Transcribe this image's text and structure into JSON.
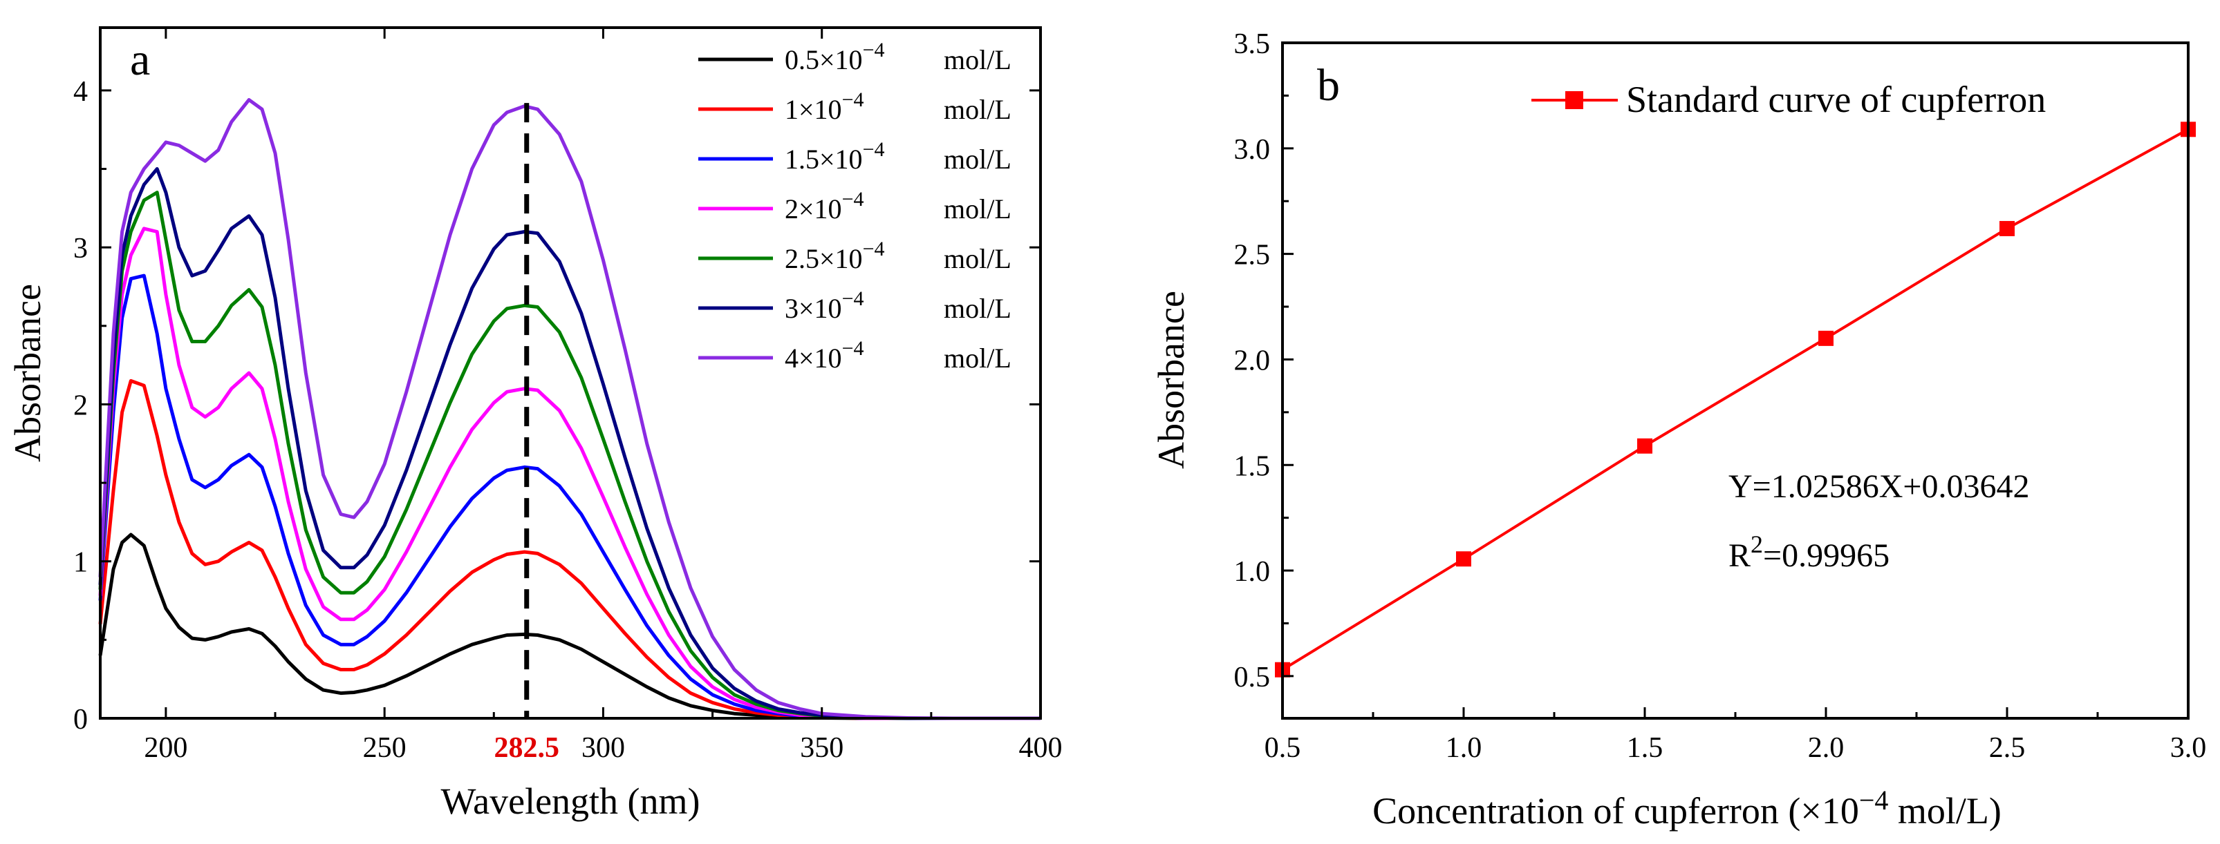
{
  "chart_data": [
    {
      "panel": "a",
      "type": "line",
      "xlabel": "Wavelength (nm)",
      "ylabel": "Absorbance",
      "xlim": [
        185,
        400
      ],
      "ylim": [
        0,
        4.4
      ],
      "xticks": [
        200,
        250,
        300,
        350,
        400
      ],
      "yticks": [
        0,
        1,
        2,
        3,
        4
      ],
      "highlight_x": 282.5,
      "highlight_label": "282.5",
      "highlight_color": "#e00000",
      "legend_position": "top-right",
      "x": [
        185,
        188,
        190,
        192,
        195,
        198,
        200,
        203,
        206,
        209,
        212,
        215,
        219,
        222,
        225,
        228,
        232,
        236,
        240,
        243,
        246,
        250,
        255,
        260,
        265,
        270,
        275,
        278,
        282,
        285,
        290,
        295,
        300,
        305,
        310,
        315,
        320,
        325,
        330,
        335,
        340,
        345,
        350,
        360,
        370,
        380,
        390,
        400
      ],
      "series": [
        {
          "name_main": "0.5×10",
          "name_exp": "−4",
          "name_unit": "mol/L",
          "color": "#000000",
          "values": [
            0.4,
            0.95,
            1.12,
            1.17,
            1.1,
            0.85,
            0.7,
            0.58,
            0.51,
            0.5,
            0.52,
            0.55,
            0.57,
            0.54,
            0.46,
            0.36,
            0.25,
            0.18,
            0.16,
            0.165,
            0.18,
            0.21,
            0.27,
            0.34,
            0.41,
            0.47,
            0.51,
            0.53,
            0.535,
            0.53,
            0.5,
            0.44,
            0.36,
            0.28,
            0.2,
            0.13,
            0.08,
            0.05,
            0.03,
            0.02,
            0.01,
            0.005,
            0.002,
            0,
            0,
            0,
            0,
            0
          ]
        },
        {
          "name_main": "1×10",
          "name_exp": "−4",
          "name_unit": "mol/L",
          "color": "#ff0000",
          "values": [
            0.6,
            1.45,
            1.95,
            2.15,
            2.12,
            1.8,
            1.55,
            1.25,
            1.05,
            0.98,
            1.0,
            1.06,
            1.12,
            1.07,
            0.9,
            0.7,
            0.47,
            0.35,
            0.31,
            0.31,
            0.34,
            0.41,
            0.53,
            0.67,
            0.81,
            0.93,
            1.01,
            1.045,
            1.06,
            1.05,
            0.98,
            0.86,
            0.7,
            0.54,
            0.39,
            0.26,
            0.16,
            0.1,
            0.06,
            0.035,
            0.02,
            0.01,
            0.005,
            0,
            0,
            0,
            0,
            0
          ]
        },
        {
          "name_main": "1.5×10",
          "name_exp": "−4",
          "name_unit": "mol/L",
          "color": "#0000ff",
          "values": [
            0.75,
            1.95,
            2.55,
            2.8,
            2.82,
            2.45,
            2.1,
            1.78,
            1.52,
            1.47,
            1.52,
            1.61,
            1.68,
            1.6,
            1.35,
            1.05,
            0.72,
            0.53,
            0.47,
            0.47,
            0.52,
            0.62,
            0.8,
            1.01,
            1.22,
            1.4,
            1.53,
            1.58,
            1.6,
            1.59,
            1.48,
            1.3,
            1.06,
            0.82,
            0.59,
            0.4,
            0.25,
            0.15,
            0.09,
            0.05,
            0.03,
            0.015,
            0.008,
            0,
            0,
            0,
            0,
            0
          ]
        },
        {
          "name_main": "2×10",
          "name_exp": "−4",
          "name_unit": "mol/L",
          "color": "#ff00ff",
          "values": [
            0.78,
            2.1,
            2.7,
            2.95,
            3.12,
            3.1,
            2.7,
            2.25,
            1.98,
            1.92,
            1.98,
            2.1,
            2.2,
            2.1,
            1.78,
            1.38,
            0.95,
            0.71,
            0.63,
            0.63,
            0.69,
            0.82,
            1.06,
            1.33,
            1.6,
            1.84,
            2.01,
            2.08,
            2.1,
            2.09,
            1.96,
            1.72,
            1.41,
            1.09,
            0.79,
            0.53,
            0.33,
            0.2,
            0.12,
            0.07,
            0.04,
            0.02,
            0.01,
            0,
            0,
            0,
            0,
            0
          ]
        },
        {
          "name_main": "2.5×10",
          "name_exp": "−4",
          "name_unit": "mol/L",
          "color": "#008000",
          "values": [
            0.82,
            2.2,
            2.85,
            3.1,
            3.3,
            3.35,
            3.05,
            2.6,
            2.4,
            2.4,
            2.5,
            2.63,
            2.73,
            2.62,
            2.25,
            1.75,
            1.2,
            0.9,
            0.8,
            0.8,
            0.87,
            1.03,
            1.33,
            1.67,
            2.01,
            2.32,
            2.53,
            2.61,
            2.63,
            2.62,
            2.46,
            2.17,
            1.78,
            1.38,
            1.0,
            0.68,
            0.43,
            0.26,
            0.15,
            0.09,
            0.05,
            0.03,
            0.015,
            0.003,
            0,
            0,
            0,
            0
          ]
        },
        {
          "name_main": "3×10",
          "name_exp": "−4",
          "name_unit": "mol/L",
          "color": "#000080",
          "values": [
            0.85,
            2.3,
            2.95,
            3.2,
            3.4,
            3.5,
            3.35,
            3.0,
            2.82,
            2.85,
            2.98,
            3.12,
            3.2,
            3.08,
            2.68,
            2.1,
            1.45,
            1.07,
            0.96,
            0.96,
            1.04,
            1.23,
            1.58,
            1.98,
            2.38,
            2.74,
            2.99,
            3.08,
            3.1,
            3.09,
            2.91,
            2.58,
            2.13,
            1.66,
            1.21,
            0.83,
            0.53,
            0.32,
            0.19,
            0.11,
            0.06,
            0.035,
            0.02,
            0.005,
            0,
            0,
            0,
            0
          ]
        },
        {
          "name_main": "4×10",
          "name_exp": "−4",
          "name_unit": "mol/L",
          "color": "#8a2be2",
          "values": [
            0.9,
            2.45,
            3.1,
            3.35,
            3.5,
            3.6,
            3.67,
            3.65,
            3.6,
            3.55,
            3.62,
            3.8,
            3.94,
            3.88,
            3.6,
            3.05,
            2.2,
            1.55,
            1.3,
            1.28,
            1.38,
            1.62,
            2.08,
            2.58,
            3.08,
            3.5,
            3.78,
            3.86,
            3.9,
            3.88,
            3.72,
            3.42,
            2.92,
            2.35,
            1.75,
            1.25,
            0.83,
            0.52,
            0.31,
            0.18,
            0.1,
            0.06,
            0.03,
            0.01,
            0.002,
            0,
            0,
            0
          ]
        }
      ]
    },
    {
      "panel": "b",
      "type": "line",
      "xlabel_main": "Concentration of cupferron (×10",
      "xlabel_exp": "−4",
      "xlabel_tail": " mol/L)",
      "ylabel": "Absorbance",
      "xlim": [
        0.5,
        3.0
      ],
      "ylim": [
        0.3,
        3.5
      ],
      "xticks": [
        "0.5",
        "1.0",
        "1.5",
        "2.0",
        "2.5",
        "3.0"
      ],
      "yticks": [
        "0.5",
        "1.0",
        "1.5",
        "2.0",
        "2.5",
        "3.0",
        "3.5"
      ],
      "legend_position": "top-right",
      "series": [
        {
          "name": "Standard curve of cupferron",
          "color": "#ff0000",
          "x": [
            0.5,
            1.0,
            1.5,
            2.0,
            2.5,
            3.0
          ],
          "values": [
            0.53,
            1.055,
            1.59,
            2.1,
            2.62,
            3.09
          ]
        }
      ],
      "equation": "Y=1.02586X+0.03642",
      "r2_prefix": "R",
      "r2_exp": "2",
      "r2_value": "=0.99965"
    }
  ]
}
